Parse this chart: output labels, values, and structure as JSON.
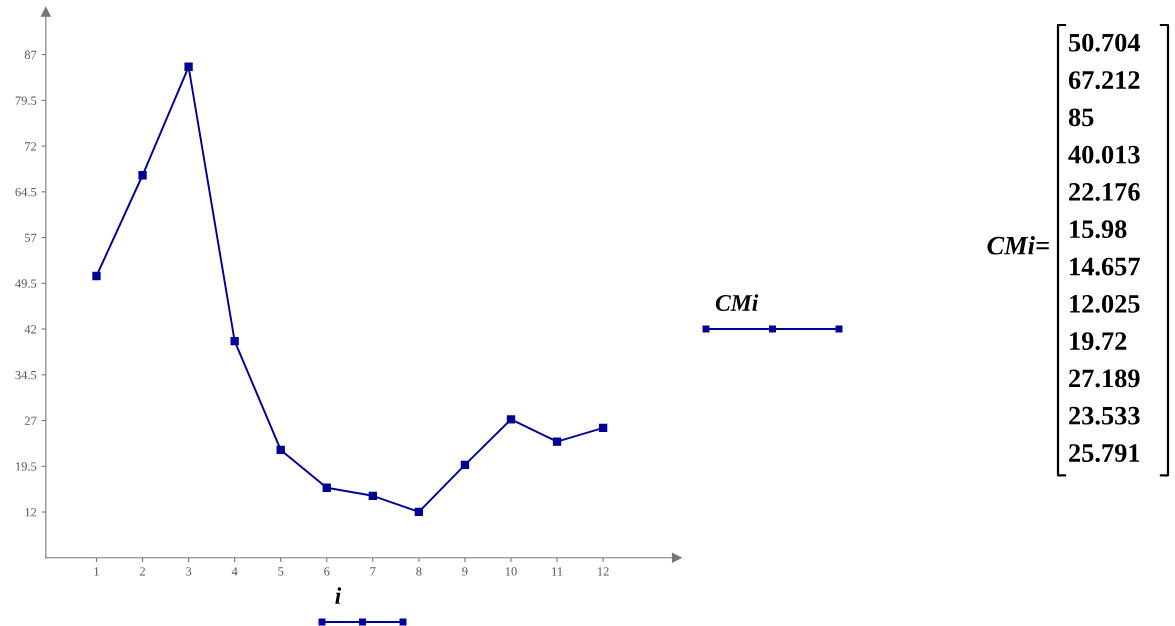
{
  "chart_data": {
    "type": "line",
    "xlabel": "i",
    "ylabel": "CMi",
    "x": [
      1,
      2,
      3,
      4,
      5,
      6,
      7,
      8,
      9,
      10,
      11,
      12
    ],
    "series": [
      {
        "color": "#000099",
        "values": [
          50.704,
          67.212,
          85,
          40.013,
          22.176,
          15.98,
          14.657,
          12.025,
          19.72,
          27.189,
          23.533,
          25.791
        ]
      }
    ],
    "xlim": [
      -0.1,
      13.6
    ],
    "ylim": [
      4.5,
      94
    ],
    "xticks": [
      1,
      2,
      3,
      4,
      5,
      6,
      7,
      8,
      9,
      10,
      11,
      12
    ],
    "yticks": [
      12,
      19.5,
      27,
      34.5,
      42,
      49.5,
      57,
      64.5,
      72,
      79.5,
      87
    ],
    "marker": "square",
    "line_style": "solid",
    "grid": false,
    "legend": false,
    "annotations": [
      "CMi=",
      "50.704",
      "67.212",
      "85",
      "40.013",
      "22.176",
      "15.98",
      "14.657",
      "12.025",
      "19.72",
      "27.189",
      "23.533",
      "25.791"
    ]
  }
}
